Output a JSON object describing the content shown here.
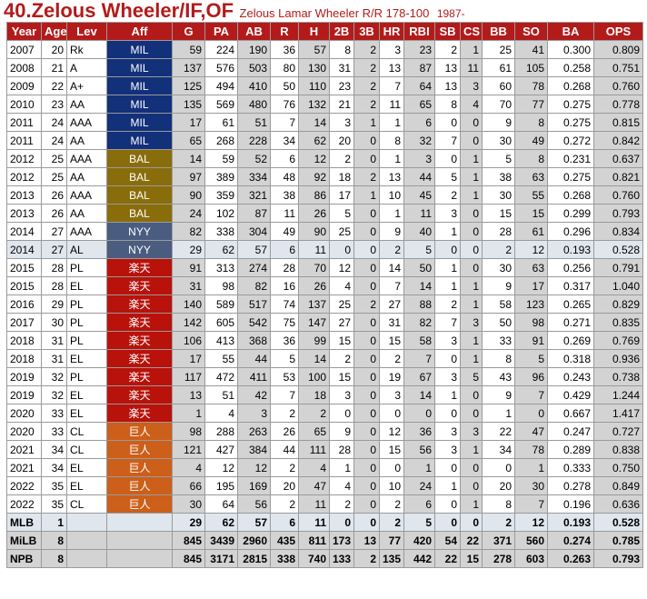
{
  "header": {
    "title": "40.Zelous Wheeler/IF,OF",
    "fullname": "Zelous Lamar Wheeler R/R 178-100",
    "born": "1987-"
  },
  "columns": [
    "Year",
    "Age",
    "Lev",
    "Aff",
    "G",
    "PA",
    "AB",
    "R",
    "H",
    "2B",
    "3B",
    "HR",
    "RBI",
    "SB",
    "CS",
    "BB",
    "SO",
    "BA",
    "OPS"
  ],
  "colors": {
    "header_bg": "#b31b1b",
    "MIL": "#13307b",
    "BAL": "#8a6d0b",
    "NYY": "#4a5d80",
    "楽天": "#b8120b",
    "巨人": "#cc5f1a",
    "grey_cell": "#d3d3d3",
    "highlight_row": "#dfe6ee"
  },
  "rows": [
    {
      "year": "2007",
      "age": "20",
      "lev": "Rk",
      "aff": "MIL",
      "g": "59",
      "pa": "224",
      "ab": "190",
      "r": "36",
      "h": "57",
      "d": "8",
      "t": "2",
      "hr": "3",
      "rbi": "23",
      "sb": "2",
      "cs": "1",
      "bb": "25",
      "so": "41",
      "ba": "0.300",
      "ops": "0.809"
    },
    {
      "year": "2008",
      "age": "21",
      "lev": "A",
      "aff": "MIL",
      "g": "137",
      "pa": "576",
      "ab": "503",
      "r": "80",
      "h": "130",
      "d": "31",
      "t": "2",
      "hr": "13",
      "rbi": "87",
      "sb": "13",
      "cs": "11",
      "bb": "61",
      "so": "105",
      "ba": "0.258",
      "ops": "0.751"
    },
    {
      "year": "2009",
      "age": "22",
      "lev": "A+",
      "aff": "MIL",
      "g": "125",
      "pa": "494",
      "ab": "410",
      "r": "50",
      "h": "110",
      "d": "23",
      "t": "2",
      "hr": "7",
      "rbi": "64",
      "sb": "13",
      "cs": "3",
      "bb": "60",
      "so": "78",
      "ba": "0.268",
      "ops": "0.760"
    },
    {
      "year": "2010",
      "age": "23",
      "lev": "AA",
      "aff": "MIL",
      "g": "135",
      "pa": "569",
      "ab": "480",
      "r": "76",
      "h": "132",
      "d": "21",
      "t": "2",
      "hr": "11",
      "rbi": "65",
      "sb": "8",
      "cs": "4",
      "bb": "70",
      "so": "77",
      "ba": "0.275",
      "ops": "0.778"
    },
    {
      "year": "2011",
      "age": "24",
      "lev": "AAA",
      "aff": "MIL",
      "g": "17",
      "pa": "61",
      "ab": "51",
      "r": "7",
      "h": "14",
      "d": "3",
      "t": "1",
      "hr": "1",
      "rbi": "6",
      "sb": "0",
      "cs": "0",
      "bb": "9",
      "so": "8",
      "ba": "0.275",
      "ops": "0.815"
    },
    {
      "year": "2011",
      "age": "24",
      "lev": "AA",
      "aff": "MIL",
      "g": "65",
      "pa": "268",
      "ab": "228",
      "r": "34",
      "h": "62",
      "d": "20",
      "t": "0",
      "hr": "8",
      "rbi": "32",
      "sb": "7",
      "cs": "0",
      "bb": "30",
      "so": "49",
      "ba": "0.272",
      "ops": "0.842"
    },
    {
      "year": "2012",
      "age": "25",
      "lev": "AAA",
      "aff": "BAL",
      "g": "14",
      "pa": "59",
      "ab": "52",
      "r": "6",
      "h": "12",
      "d": "2",
      "t": "0",
      "hr": "1",
      "rbi": "3",
      "sb": "0",
      "cs": "1",
      "bb": "5",
      "so": "8",
      "ba": "0.231",
      "ops": "0.637"
    },
    {
      "year": "2012",
      "age": "25",
      "lev": "AA",
      "aff": "BAL",
      "g": "97",
      "pa": "389",
      "ab": "334",
      "r": "48",
      "h": "92",
      "d": "18",
      "t": "2",
      "hr": "13",
      "rbi": "44",
      "sb": "5",
      "cs": "1",
      "bb": "38",
      "so": "63",
      "ba": "0.275",
      "ops": "0.821"
    },
    {
      "year": "2013",
      "age": "26",
      "lev": "AAA",
      "aff": "BAL",
      "g": "90",
      "pa": "359",
      "ab": "321",
      "r": "38",
      "h": "86",
      "d": "17",
      "t": "1",
      "hr": "10",
      "rbi": "45",
      "sb": "2",
      "cs": "1",
      "bb": "30",
      "so": "55",
      "ba": "0.268",
      "ops": "0.760"
    },
    {
      "year": "2013",
      "age": "26",
      "lev": "AA",
      "aff": "BAL",
      "g": "24",
      "pa": "102",
      "ab": "87",
      "r": "11",
      "h": "26",
      "d": "5",
      "t": "0",
      "hr": "1",
      "rbi": "11",
      "sb": "3",
      "cs": "0",
      "bb": "15",
      "so": "15",
      "ba": "0.299",
      "ops": "0.793"
    },
    {
      "year": "2014",
      "age": "27",
      "lev": "AAA",
      "aff": "NYY",
      "g": "82",
      "pa": "338",
      "ab": "304",
      "r": "49",
      "h": "90",
      "d": "25",
      "t": "0",
      "hr": "9",
      "rbi": "40",
      "sb": "1",
      "cs": "0",
      "bb": "28",
      "so": "61",
      "ba": "0.296",
      "ops": "0.834"
    },
    {
      "year": "2014",
      "age": "27",
      "lev": "AL",
      "aff": "NYY",
      "g": "29",
      "pa": "62",
      "ab": "57",
      "r": "6",
      "h": "11",
      "d": "0",
      "t": "0",
      "hr": "2",
      "rbi": "5",
      "sb": "0",
      "cs": "0",
      "bb": "2",
      "so": "12",
      "ba": "0.193",
      "ops": "0.528",
      "hl": true
    },
    {
      "year": "2015",
      "age": "28",
      "lev": "PL",
      "aff": "楽天",
      "g": "91",
      "pa": "313",
      "ab": "274",
      "r": "28",
      "h": "70",
      "d": "12",
      "t": "0",
      "hr": "14",
      "rbi": "50",
      "sb": "1",
      "cs": "0",
      "bb": "30",
      "so": "63",
      "ba": "0.256",
      "ops": "0.791"
    },
    {
      "year": "2015",
      "age": "28",
      "lev": "EL",
      "aff": "楽天",
      "g": "31",
      "pa": "98",
      "ab": "82",
      "r": "16",
      "h": "26",
      "d": "4",
      "t": "0",
      "hr": "7",
      "rbi": "14",
      "sb": "1",
      "cs": "1",
      "bb": "9",
      "so": "17",
      "ba": "0.317",
      "ops": "1.040"
    },
    {
      "year": "2016",
      "age": "29",
      "lev": "PL",
      "aff": "楽天",
      "g": "140",
      "pa": "589",
      "ab": "517",
      "r": "74",
      "h": "137",
      "d": "25",
      "t": "2",
      "hr": "27",
      "rbi": "88",
      "sb": "2",
      "cs": "1",
      "bb": "58",
      "so": "123",
      "ba": "0.265",
      "ops": "0.829"
    },
    {
      "year": "2017",
      "age": "30",
      "lev": "PL",
      "aff": "楽天",
      "g": "142",
      "pa": "605",
      "ab": "542",
      "r": "75",
      "h": "147",
      "d": "27",
      "t": "0",
      "hr": "31",
      "rbi": "82",
      "sb": "7",
      "cs": "3",
      "bb": "50",
      "so": "98",
      "ba": "0.271",
      "ops": "0.835"
    },
    {
      "year": "2018",
      "age": "31",
      "lev": "PL",
      "aff": "楽天",
      "g": "106",
      "pa": "413",
      "ab": "368",
      "r": "36",
      "h": "99",
      "d": "15",
      "t": "0",
      "hr": "15",
      "rbi": "58",
      "sb": "3",
      "cs": "1",
      "bb": "33",
      "so": "91",
      "ba": "0.269",
      "ops": "0.769"
    },
    {
      "year": "2018",
      "age": "31",
      "lev": "EL",
      "aff": "楽天",
      "g": "17",
      "pa": "55",
      "ab": "44",
      "r": "5",
      "h": "14",
      "d": "2",
      "t": "0",
      "hr": "2",
      "rbi": "7",
      "sb": "0",
      "cs": "1",
      "bb": "8",
      "so": "5",
      "ba": "0.318",
      "ops": "0.936"
    },
    {
      "year": "2019",
      "age": "32",
      "lev": "PL",
      "aff": "楽天",
      "g": "117",
      "pa": "472",
      "ab": "411",
      "r": "53",
      "h": "100",
      "d": "15",
      "t": "0",
      "hr": "19",
      "rbi": "67",
      "sb": "3",
      "cs": "5",
      "bb": "43",
      "so": "96",
      "ba": "0.243",
      "ops": "0.738"
    },
    {
      "year": "2019",
      "age": "32",
      "lev": "EL",
      "aff": "楽天",
      "g": "13",
      "pa": "51",
      "ab": "42",
      "r": "7",
      "h": "18",
      "d": "3",
      "t": "0",
      "hr": "3",
      "rbi": "14",
      "sb": "1",
      "cs": "0",
      "bb": "9",
      "so": "7",
      "ba": "0.429",
      "ops": "1.244"
    },
    {
      "year": "2020",
      "age": "33",
      "lev": "EL",
      "aff": "楽天",
      "g": "1",
      "pa": "4",
      "ab": "3",
      "r": "2",
      "h": "2",
      "d": "0",
      "t": "0",
      "hr": "0",
      "rbi": "0",
      "sb": "0",
      "cs": "0",
      "bb": "1",
      "so": "0",
      "ba": "0.667",
      "ops": "1.417"
    },
    {
      "year": "2020",
      "age": "33",
      "lev": "CL",
      "aff": "巨人",
      "g": "98",
      "pa": "288",
      "ab": "263",
      "r": "26",
      "h": "65",
      "d": "9",
      "t": "0",
      "hr": "12",
      "rbi": "36",
      "sb": "3",
      "cs": "3",
      "bb": "22",
      "so": "47",
      "ba": "0.247",
      "ops": "0.727"
    },
    {
      "year": "2021",
      "age": "34",
      "lev": "CL",
      "aff": "巨人",
      "g": "121",
      "pa": "427",
      "ab": "384",
      "r": "44",
      "h": "111",
      "d": "28",
      "t": "0",
      "hr": "15",
      "rbi": "56",
      "sb": "3",
      "cs": "1",
      "bb": "34",
      "so": "78",
      "ba": "0.289",
      "ops": "0.838"
    },
    {
      "year": "2021",
      "age": "34",
      "lev": "EL",
      "aff": "巨人",
      "g": "4",
      "pa": "12",
      "ab": "12",
      "r": "2",
      "h": "4",
      "d": "1",
      "t": "0",
      "hr": "0",
      "rbi": "1",
      "sb": "0",
      "cs": "0",
      "bb": "0",
      "so": "1",
      "ba": "0.333",
      "ops": "0.750"
    },
    {
      "year": "2022",
      "age": "35",
      "lev": "EL",
      "aff": "巨人",
      "g": "66",
      "pa": "195",
      "ab": "169",
      "r": "20",
      "h": "47",
      "d": "4",
      "t": "0",
      "hr": "10",
      "rbi": "24",
      "sb": "1",
      "cs": "0",
      "bb": "20",
      "so": "30",
      "ba": "0.278",
      "ops": "0.849"
    },
    {
      "year": "2022",
      "age": "35",
      "lev": "CL",
      "aff": "巨人",
      "g": "30",
      "pa": "64",
      "ab": "56",
      "r": "2",
      "h": "11",
      "d": "2",
      "t": "0",
      "hr": "2",
      "rbi": "6",
      "sb": "0",
      "cs": "1",
      "bb": "8",
      "so": "7",
      "ba": "0.196",
      "ops": "0.636"
    }
  ],
  "totals": [
    {
      "label": "MLB",
      "years": "1",
      "g": "29",
      "pa": "62",
      "ab": "57",
      "r": "6",
      "h": "11",
      "d": "0",
      "t": "0",
      "hr": "2",
      "rbi": "5",
      "sb": "0",
      "cs": "0",
      "bb": "2",
      "so": "12",
      "ba": "0.193",
      "ops": "0.528",
      "hl": true
    },
    {
      "label": "MiLB",
      "years": "8",
      "g": "845",
      "pa": "3439",
      "ab": "2960",
      "r": "435",
      "h": "811",
      "d": "173",
      "t": "13",
      "hr": "77",
      "rbi": "420",
      "sb": "54",
      "cs": "22",
      "bb": "371",
      "so": "560",
      "ba": "0.274",
      "ops": "0.785"
    },
    {
      "label": "NPB",
      "years": "8",
      "g": "845",
      "pa": "3171",
      "ab": "2815",
      "r": "338",
      "h": "740",
      "d": "133",
      "t": "2",
      "hr": "135",
      "rbi": "442",
      "sb": "22",
      "cs": "15",
      "bb": "278",
      "so": "603",
      "ba": "0.263",
      "ops": "0.793"
    }
  ]
}
